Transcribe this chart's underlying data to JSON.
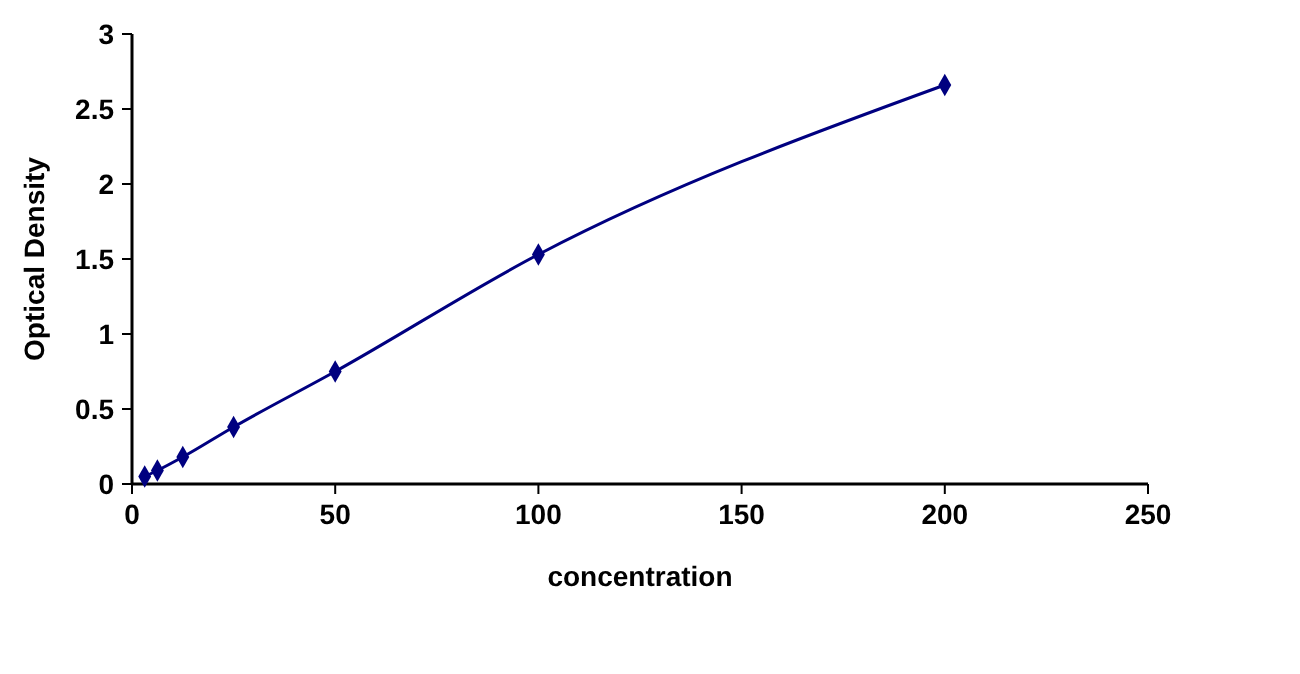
{
  "chart_data": {
    "type": "line",
    "xlabel": "concentration",
    "ylabel": "Optical Density",
    "x": [
      3.125,
      6.25,
      12.5,
      25,
      50,
      100,
      200
    ],
    "series": [
      {
        "color": "#000080",
        "values": [
          0.05,
          0.09,
          0.18,
          0.38,
          0.75,
          1.53,
          2.66
        ]
      }
    ],
    "xlim": [
      0,
      250
    ],
    "xticks": [
      0,
      50,
      100,
      150,
      200,
      250
    ],
    "ylim": [
      0,
      3
    ],
    "yticks": [
      0,
      0.5,
      1,
      1.5,
      2,
      2.5,
      3
    ],
    "marker": "diamond",
    "line_style": "solid",
    "grid": false
  }
}
